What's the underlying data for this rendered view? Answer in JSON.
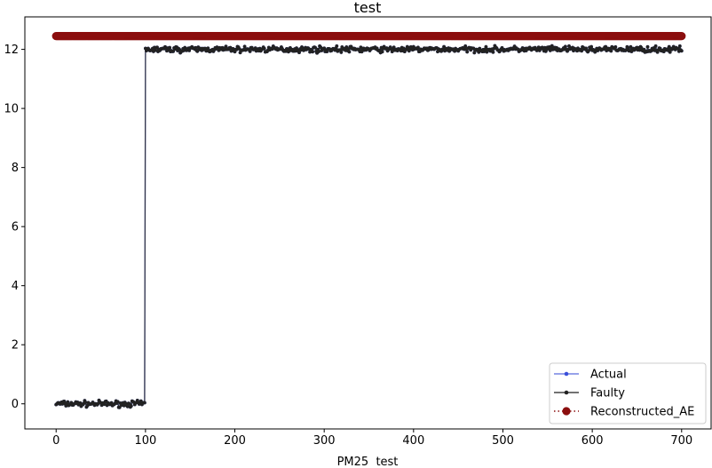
{
  "chart_data": {
    "type": "line",
    "title": "test",
    "xlabel": "PM25  test",
    "ylabel": "",
    "xlim": [
      -35,
      733
    ],
    "ylim": [
      -0.85,
      13.1
    ],
    "xticks": [
      0,
      100,
      200,
      300,
      400,
      500,
      600,
      700
    ],
    "yticks": [
      0,
      2,
      4,
      6,
      8,
      10,
      12
    ],
    "grid": false,
    "legend_position": "lower-right",
    "series": [
      {
        "name": "Actual",
        "color": "#3a4fd9",
        "style": "solid line with small dot markers",
        "segments": [
          {
            "x_range": [
              0,
              99
            ],
            "mean": 0.0,
            "noise": 0.1
          },
          {
            "x_range": [
              100,
              700
            ],
            "mean": 12.0,
            "noise": 0.1
          }
        ]
      },
      {
        "name": "Faulty",
        "color": "#222222",
        "style": "solid line with small dot markers",
        "segments": [
          {
            "x_range": [
              0,
              99
            ],
            "mean": 0.0,
            "noise": 0.1
          },
          {
            "x_range": [
              100,
              700
            ],
            "mean": 12.0,
            "noise": 0.1
          }
        ]
      },
      {
        "name": "Reconstructed_AE",
        "color": "#8b0e0e",
        "style": "dotted line with large circle markers",
        "segments": [
          {
            "x_range": [
              0,
              700
            ],
            "mean": 12.45,
            "noise": 0.0
          }
        ]
      }
    ]
  }
}
